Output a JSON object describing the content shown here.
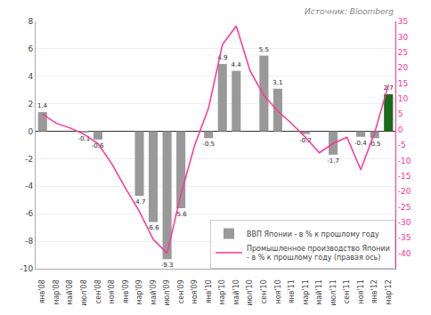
{
  "chart_data": {
    "type": "bar",
    "categories": [
      "янв'08",
      "мар'08",
      "май'08",
      "июл'08",
      "сен'08",
      "ноя'08",
      "янв'09",
      "мар'09",
      "май'09",
      "июл'09",
      "сен'09",
      "ноя'09",
      "янв'10",
      "мар'10",
      "май'10",
      "июл'10",
      "сен'10",
      "ноя'10",
      "янв'11",
      "мар'11",
      "май'11",
      "июл'11",
      "сен'11",
      "ноя'11",
      "янв'12",
      "мар'12"
    ],
    "series": [
      {
        "name": "ВВП Японии - в % к прошлому году",
        "type": "bar",
        "data_labels": true,
        "colors": [
          "#999999",
          "#999999",
          "#999999",
          "#999999",
          "#999999",
          "#999999",
          "#999999",
          "#999999",
          "#999999",
          "#999999",
          "#999999",
          "#999999",
          "#999999",
          "#999999",
          "#999999",
          "#999999",
          "#999999",
          "#999999",
          "#999999",
          "#999999",
          "#999999",
          "#999999",
          "#999999",
          "#999999",
          "#999999",
          "#1a6b1a"
        ],
        "values": [
          1.4,
          null,
          null,
          -0.1,
          -0.6,
          null,
          null,
          -4.7,
          -6.6,
          -9.3,
          -5.6,
          null,
          -0.5,
          4.9,
          4.4,
          null,
          5.5,
          3.1,
          null,
          -0.2,
          null,
          -1.7,
          null,
          -0.4,
          -0.5,
          2.7
        ]
      },
      {
        "name": "Промышленное производство Японии\n- в % к прошлому году (правая ось)",
        "type": "line",
        "axis": "y2",
        "color": "#ff3399",
        "values": [
          5.0,
          2.0,
          0.5,
          -1.5,
          -4.5,
          -11.0,
          -19.0,
          -26.5,
          -35.5,
          -40.0,
          -21.0,
          -5.0,
          7.0,
          27.5,
          33.5,
          19.0,
          11.0,
          6.0,
          2.0,
          -2.5,
          -7.5,
          -4.5,
          -2.5,
          -13.0,
          -1.0,
          14.5
        ]
      }
    ],
    "ylim": [
      -10,
      8
    ],
    "yticks": [
      -10,
      -8,
      -6,
      -4,
      -2,
      0,
      2,
      4,
      6,
      8
    ],
    "y2lim": [
      -45,
      35
    ],
    "y2ticks": [
      -40,
      -35,
      -30,
      -25,
      -20,
      -15,
      -10,
      -5,
      0,
      5,
      10,
      15,
      20,
      25,
      30,
      35
    ],
    "grid": true,
    "legend": "lower right",
    "annotations": [
      "Источник: Bloomberg"
    ]
  }
}
